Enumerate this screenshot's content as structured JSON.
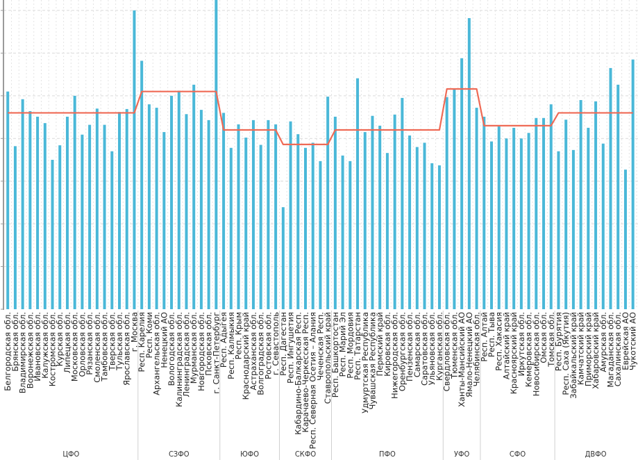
{
  "chart_data": {
    "type": "bar",
    "title": "",
    "xlabel": "",
    "ylabel": "",
    "ylim": [
      0,
      7.05
    ],
    "yticks": [
      0,
      1,
      2,
      3,
      4,
      5,
      6,
      7
    ],
    "ytick_labels_visible": false,
    "grid": true,
    "legend": "none",
    "colors": {
      "bar": "#4ab8d8",
      "average_line": "#ef6a55"
    },
    "groups": [
      {
        "name": "ЦФО",
        "average": 4.6,
        "categories": [
          "Белгородская обл.",
          "Брянская обл.",
          "Владимирская обл.",
          "Воронежская обл.",
          "Ивановская обл.",
          "Калужская обл.",
          "Костромская обл.",
          "Курская обл.",
          "Липецкая обл.",
          "Московская обл.",
          "Орловская обл.",
          "Рязанская обл.",
          "Смоленская обл.",
          "Тамбовская обл.",
          "Тверская обл.",
          "Тульская обл.",
          "Ярославская обл.",
          "г. Москва"
        ],
        "values": [
          5.1,
          3.82,
          4.92,
          4.64,
          4.51,
          4.36,
          3.5,
          3.84,
          4.51,
          5.0,
          4.09,
          4.32,
          4.7,
          4.32,
          3.7,
          4.62,
          4.69,
          7.0
        ]
      },
      {
        "name": "СЗФО",
        "average": 5.1,
        "categories": [
          "Респ. Карелия",
          "Респ. Коми",
          "Архангельская обл.",
          "Ненецкий АО",
          "Вологодская обл.",
          "Калининградская обл.",
          "Ленинградская обл.",
          "Мурманская обл.",
          "Новгородская обл.",
          "Псковская обл.",
          "г. Санкт-Петербург"
        ],
        "values": [
          5.82,
          4.8,
          4.72,
          4.15,
          5.0,
          5.12,
          4.57,
          5.26,
          4.67,
          4.43,
          7.3
        ]
      },
      {
        "name": "ЮФО",
        "average": 4.2,
        "categories": [
          "Респ. Адыгея",
          "Респ. Калмыкия",
          "Респ. Крым",
          "Краснодарский край",
          "Астраханская обл.",
          "Волгоградская обл.",
          "Ростовская обл.",
          "г. Севастополь"
        ],
        "values": [
          4.6,
          3.78,
          4.33,
          4.02,
          4.43,
          3.85,
          4.43,
          4.33
        ]
      },
      {
        "name": "СКФО",
        "average": 3.86,
        "categories": [
          "Респ. Дагестан",
          "Респ. Ингушетия",
          "Кабардино-Балкарская Респ.",
          "Карачаево-Черкесская Респ.",
          "Респ. Северная Осетия – Алания",
          "Чеченская Респ.",
          "Ставропольский край"
        ],
        "values": [
          2.39,
          4.4,
          4.1,
          3.78,
          3.9,
          3.47,
          4.98
        ]
      },
      {
        "name": "ПФО",
        "average": 4.2,
        "categories": [
          "Респ. Башкортостан",
          "Респ. Марий Эл",
          "Респ. Мордовия",
          "Респ. Татарстан",
          "Удмуртская Республика",
          "Чувашская Республика",
          "Пермский край",
          "Кировская обл.",
          "Нижегородская обл.",
          "Оренбургская обл.",
          "Пензенская обл.",
          "Самарская обл.",
          "Саратовская обл.",
          "Ульяновская обл.",
          "Курганская обл."
        ],
        "values": [
          4.51,
          3.6,
          3.47,
          5.41,
          4.15,
          4.53,
          4.3,
          3.66,
          4.56,
          4.95,
          4.07,
          3.8,
          3.9,
          3.42,
          3.37
        ]
      },
      {
        "name": "УФО",
        "average": 5.16,
        "categories": [
          "Свердловская обл.",
          "Тюменская обл.",
          "Ханты-Мансийский АО",
          "Ямало-Ненецкий АО",
          "Челябинская обл."
        ],
        "values": [
          4.97,
          5.15,
          5.88,
          6.82,
          4.72
        ]
      },
      {
        "name": "СФО",
        "average": 4.3,
        "categories": [
          "Респ. Алтай",
          "Респ. Тыва",
          "Респ. Хакасия",
          "Алтайский край",
          "Красноярский край",
          "Иркутская обл.",
          "Кемеровская обл.",
          "Новосибирская обл.",
          "Омская обл.",
          "Томская обл."
        ],
        "values": [
          4.51,
          3.93,
          4.28,
          4.0,
          4.25,
          4.0,
          4.13,
          4.48,
          4.48,
          4.8
        ]
      },
      {
        "name": "ДВФО",
        "average": 4.6,
        "categories": [
          "Респ. Бурятия",
          "Респ. Саха (Якутия)",
          "Забайкальский край",
          "Камчатский край",
          "Приморский край",
          "Хабаровский край",
          "Амурская обл.",
          "Магаданская обл.",
          "Сахалинская обл.",
          "Еврейская АО",
          "Чукотский АО"
        ],
        "values": [
          3.7,
          4.44,
          3.73,
          4.9,
          4.25,
          4.87,
          3.88,
          5.65,
          5.26,
          3.27,
          5.85
        ]
      }
    ]
  }
}
